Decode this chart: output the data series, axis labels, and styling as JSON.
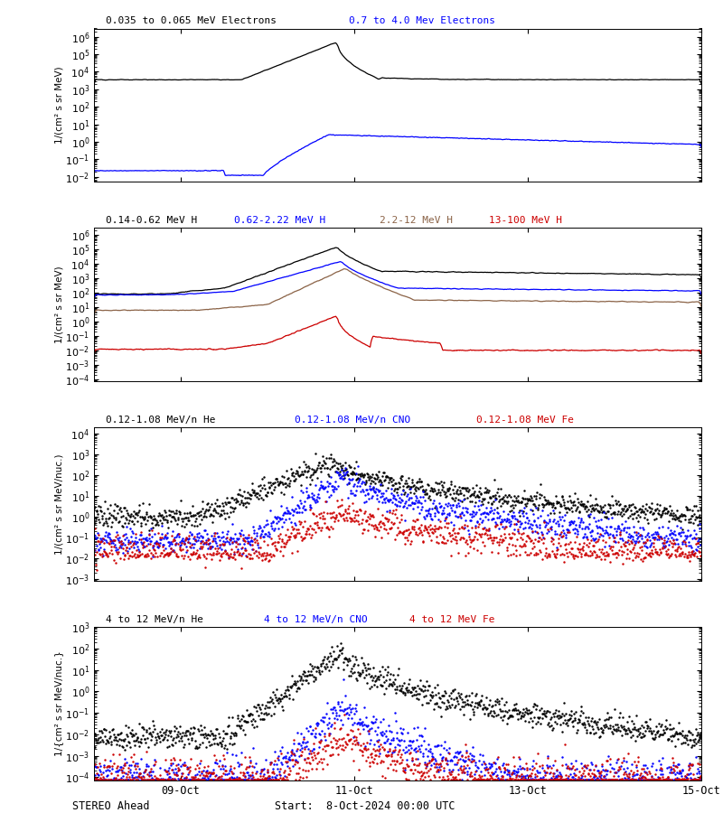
{
  "title_panel1_black": "0.035 to 0.065 MeV Electrons",
  "title_panel1_blue": "0.7 to 4.0 Mev Electrons",
  "title_panel2_black": "0.14-0.62 MeV H",
  "title_panel2_blue": "0.62-2.22 MeV H",
  "title_panel2_brown": "2.2-12 MeV H",
  "title_panel2_red": "13-100 MeV H",
  "title_panel3_black": "0.12-1.08 MeV/n He",
  "title_panel3_blue": "0.12-1.08 MeV/n CNO",
  "title_panel3_red": "0.12-1.08 MeV Fe",
  "title_panel4_black": "4 to 12 MeV/n He",
  "title_panel4_blue": "4 to 12 MeV/n CNO",
  "title_panel4_red": "4 to 12 MeV Fe",
  "stereo_label": "STEREO Ahead",
  "start_label": "Start:  8-Oct-2024 00:00 UTC",
  "ylabel_p1": "1/(cm² s sr MeV)",
  "ylabel_p2": "1/(cm² s sr MeV)",
  "ylabel_p3": "1/(cm² s sr MeV/nuc.)",
  "ylabel_p4": "1/{cm² s sr MeV/nuc.}",
  "ylim_p1": [
    0.005,
    3000000.0
  ],
  "ylim_p2": [
    7e-05,
    3000000.0
  ],
  "ylim_p3": [
    0.0008,
    20000.0
  ],
  "ylim_p4": [
    7e-05,
    1000.0
  ],
  "xtick_labels": [
    "09-Oct",
    "11-Oct",
    "13-Oct",
    "15-Oct"
  ],
  "xtick_positions": [
    1.0,
    3.0,
    5.0,
    7.0
  ],
  "background_color": "#ffffff",
  "color_black": "#000000",
  "color_blue": "#0000ff",
  "color_brown": "#8B6347",
  "color_red": "#cc0000"
}
